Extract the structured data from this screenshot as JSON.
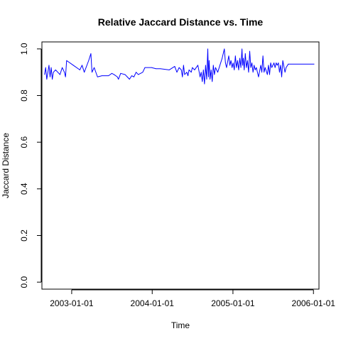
{
  "chart_data": {
    "type": "line",
    "title": "Relative Jaccard Distance vs. Time",
    "xlabel": "Time",
    "ylabel": "Jaccard Distance",
    "xlim": [
      "2002-08-19",
      "2006-01-26"
    ],
    "ylim": [
      -0.03,
      1.03
    ],
    "grid": false,
    "x_ticks": [
      "2003-01-01",
      "2004-01-01",
      "2005-01-01",
      "2006-01-01"
    ],
    "y_ticks": [
      "0.0",
      "0.2",
      "0.4",
      "0.6",
      "0.8",
      "1.0"
    ],
    "series": [
      {
        "color": "#0000ff",
        "points": [
          [
            "2002-08-31",
            0.89
          ],
          [
            "2002-09-05",
            0.92
          ],
          [
            "2002-09-10",
            0.87
          ],
          [
            "2002-09-15",
            0.9
          ],
          [
            "2002-09-20",
            0.93
          ],
          [
            "2002-09-25",
            0.88
          ],
          [
            "2002-09-30",
            0.92
          ],
          [
            "2002-10-05",
            0.87
          ],
          [
            "2002-10-10",
            0.9
          ],
          [
            "2002-10-20",
            0.91
          ],
          [
            "2002-10-30",
            0.9
          ],
          [
            "2002-11-09",
            0.89
          ],
          [
            "2002-11-19",
            0.92
          ],
          [
            "2002-11-29",
            0.9
          ],
          [
            "2002-12-04",
            0.88
          ],
          [
            "2002-12-09",
            0.95
          ],
          [
            "2003-01-08",
            0.93
          ],
          [
            "2003-02-07",
            0.91
          ],
          [
            "2003-02-17",
            0.93
          ],
          [
            "2003-02-27",
            0.9
          ],
          [
            "2003-03-19",
            0.95
          ],
          [
            "2003-03-29",
            0.98
          ],
          [
            "2003-04-03",
            0.9
          ],
          [
            "2003-04-13",
            0.92
          ],
          [
            "2003-04-28",
            0.88
          ],
          [
            "2003-05-18",
            0.885
          ],
          [
            "2003-06-17",
            0.885
          ],
          [
            "2003-07-02",
            0.895
          ],
          [
            "2003-07-12",
            0.89
          ],
          [
            "2003-07-27",
            0.88
          ],
          [
            "2003-08-01",
            0.87
          ],
          [
            "2003-08-11",
            0.895
          ],
          [
            "2003-08-31",
            0.89
          ],
          [
            "2003-09-10",
            0.88
          ],
          [
            "2003-09-20",
            0.87
          ],
          [
            "2003-09-30",
            0.885
          ],
          [
            "2003-10-10",
            0.88
          ],
          [
            "2003-10-20",
            0.9
          ],
          [
            "2003-10-30",
            0.89
          ],
          [
            "2003-11-19",
            0.9
          ],
          [
            "2003-11-29",
            0.92
          ],
          [
            "2003-12-29",
            0.92
          ],
          [
            "2004-01-18",
            0.915
          ],
          [
            "2004-02-07",
            0.915
          ],
          [
            "2004-03-18",
            0.91
          ],
          [
            "2004-04-12",
            0.925
          ],
          [
            "2004-04-22",
            0.9
          ],
          [
            "2004-05-02",
            0.92
          ],
          [
            "2004-05-12",
            0.91
          ],
          [
            "2004-05-17",
            0.88
          ],
          [
            "2004-05-22",
            0.93
          ],
          [
            "2004-05-27",
            0.89
          ],
          [
            "2004-06-06",
            0.9
          ],
          [
            "2004-06-11",
            0.885
          ],
          [
            "2004-06-16",
            0.91
          ],
          [
            "2004-06-26",
            0.9
          ],
          [
            "2004-07-01",
            0.92
          ],
          [
            "2004-07-11",
            0.91
          ],
          [
            "2004-07-26",
            0.93
          ],
          [
            "2004-08-05",
            0.88
          ],
          [
            "2004-08-10",
            0.9
          ],
          [
            "2004-08-15",
            0.86
          ],
          [
            "2004-08-20",
            0.91
          ],
          [
            "2004-08-25",
            0.85
          ],
          [
            "2004-08-30",
            0.93
          ],
          [
            "2004-09-04",
            0.87
          ],
          [
            "2004-09-09",
            1.0
          ],
          [
            "2004-09-12",
            0.88
          ],
          [
            "2004-09-15",
            0.95
          ],
          [
            "2004-09-19",
            0.87
          ],
          [
            "2004-09-24",
            0.91
          ],
          [
            "2004-09-29",
            0.86
          ],
          [
            "2004-10-04",
            0.93
          ],
          [
            "2004-10-09",
            0.89
          ],
          [
            "2004-10-14",
            0.92
          ],
          [
            "2004-10-24",
            0.9
          ],
          [
            "2004-11-03",
            0.93
          ],
          [
            "2004-11-13",
            0.96
          ],
          [
            "2004-11-23",
            1.0
          ],
          [
            "2004-11-28",
            0.94
          ],
          [
            "2004-12-03",
            0.92
          ],
          [
            "2004-12-13",
            0.97
          ],
          [
            "2004-12-18",
            0.93
          ],
          [
            "2004-12-23",
            0.95
          ],
          [
            "2004-12-28",
            0.92
          ],
          [
            "2005-01-02",
            0.94
          ],
          [
            "2005-01-07",
            0.91
          ],
          [
            "2005-01-12",
            0.97
          ],
          [
            "2005-01-17",
            0.92
          ],
          [
            "2005-01-22",
            0.95
          ],
          [
            "2005-01-27",
            0.91
          ],
          [
            "2005-02-01",
            0.96
          ],
          [
            "2005-02-06",
            0.92
          ],
          [
            "2005-02-11",
            1.0
          ],
          [
            "2005-02-14",
            0.93
          ],
          [
            "2005-02-17",
            0.96
          ],
          [
            "2005-02-21",
            0.91
          ],
          [
            "2005-02-26",
            0.98
          ],
          [
            "2005-03-03",
            0.92
          ],
          [
            "2005-03-08",
            0.95
          ],
          [
            "2005-03-13",
            0.9
          ],
          [
            "2005-03-18",
            0.99
          ],
          [
            "2005-03-23",
            0.92
          ],
          [
            "2005-03-28",
            0.94
          ],
          [
            "2005-04-02",
            0.9
          ],
          [
            "2005-04-07",
            0.93
          ],
          [
            "2005-04-12",
            0.91
          ],
          [
            "2005-04-17",
            0.92
          ],
          [
            "2005-04-27",
            0.88
          ],
          [
            "2005-05-07",
            0.93
          ],
          [
            "2005-05-12",
            0.9
          ],
          [
            "2005-05-17",
            0.97
          ],
          [
            "2005-05-22",
            0.9
          ],
          [
            "2005-05-27",
            0.92
          ],
          [
            "2005-06-06",
            0.89
          ],
          [
            "2005-06-11",
            0.93
          ],
          [
            "2005-06-16",
            0.89
          ],
          [
            "2005-06-21",
            0.94
          ],
          [
            "2005-06-26",
            0.92
          ],
          [
            "2005-07-06",
            0.94
          ],
          [
            "2005-07-11",
            0.92
          ],
          [
            "2005-07-16",
            0.94
          ],
          [
            "2005-07-21",
            0.93
          ],
          [
            "2005-07-26",
            0.94
          ],
          [
            "2005-07-31",
            0.9
          ],
          [
            "2005-08-05",
            0.93
          ],
          [
            "2005-08-10",
            0.88
          ],
          [
            "2005-08-15",
            0.95
          ],
          [
            "2005-08-25",
            0.9
          ],
          [
            "2005-08-30",
            0.92
          ],
          [
            "2005-09-09",
            0.935
          ],
          [
            "2006-01-04",
            0.935
          ]
        ]
      }
    ]
  }
}
